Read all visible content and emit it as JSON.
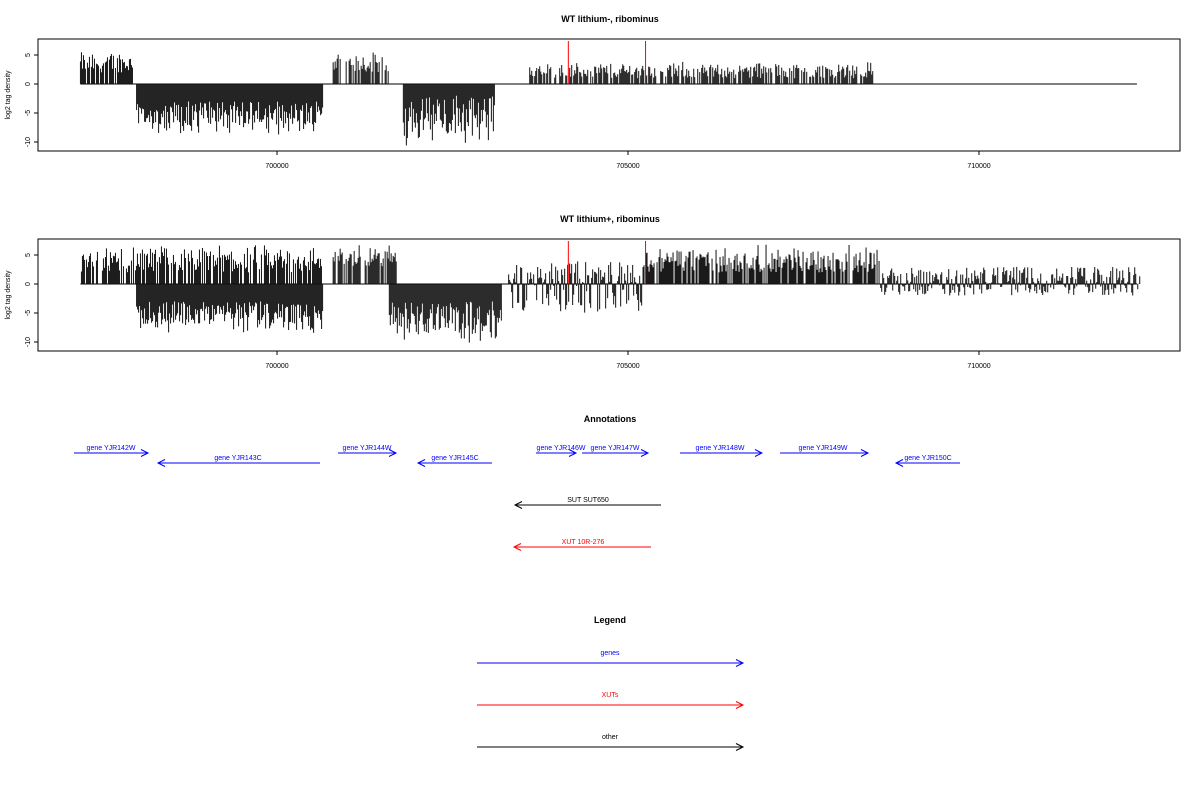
{
  "chart_data": [
    {
      "type": "bar",
      "title": "WT lithium-, ribominus",
      "xlabel": "",
      "ylabel": "log2 tag density",
      "xlim": [
        697150,
        712350
      ],
      "ylim": [
        -11.5,
        7.5
      ],
      "xticks": [
        700000,
        705000,
        710000
      ],
      "yticks": [
        5,
        0,
        -5,
        -10
      ],
      "grid": false,
      "series": [
        {
          "values": [
            {
              "x_start": 697200,
              "x_end": 697950,
              "min": 2,
              "max": 6
            },
            {
              "x_start": 698000,
              "x_end": 700650,
              "min": -9,
              "max": -3
            },
            {
              "x_start": 700800,
              "x_end": 701600,
              "min": 2,
              "max": 6
            },
            {
              "x_start": 701800,
              "x_end": 703100,
              "min": -11,
              "max": -2
            },
            {
              "x_start": 703600,
              "x_end": 708500,
              "min": 1,
              "max": 4
            }
          ]
        }
      ],
      "markers": [
        704150,
        705250
      ]
    },
    {
      "type": "bar",
      "title": "WT lithium+, ribominus",
      "xlabel": "",
      "ylabel": "log2 tag density",
      "xlim": [
        697150,
        712350
      ],
      "ylim": [
        -11.5,
        7.5
      ],
      "xticks": [
        700000,
        705000,
        710000
      ],
      "yticks": [
        5,
        0,
        -5,
        -10
      ],
      "grid": false,
      "series": [
        {
          "values": [
            {
              "x_start": 697200,
              "x_end": 700650,
              "min": 2,
              "max": 7
            },
            {
              "x_start": 698000,
              "x_end": 700650,
              "min": -9,
              "max": -3
            },
            {
              "x_start": 700800,
              "x_end": 701700,
              "min": 3,
              "max": 7
            },
            {
              "x_start": 701600,
              "x_end": 703200,
              "min": -11,
              "max": -3
            },
            {
              "x_start": 703300,
              "x_end": 705200,
              "min": -5,
              "max": 4
            },
            {
              "x_start": 705200,
              "x_end": 708600,
              "min": 2,
              "max": 7
            },
            {
              "x_start": 708600,
              "x_end": 712300,
              "min": -2,
              "max": 3
            }
          ]
        }
      ],
      "markers": [
        704150,
        705250
      ]
    },
    {
      "type": "annotation-track",
      "title": "Annotations",
      "features": [
        {
          "label": "gene YJR142W",
          "kind": "genes",
          "strand": "+"
        },
        {
          "label": "gene YJR143C",
          "kind": "genes",
          "strand": "-"
        },
        {
          "label": "gene YJR144W",
          "kind": "genes",
          "strand": "+"
        },
        {
          "label": "gene YJR145C",
          "kind": "genes",
          "strand": "-"
        },
        {
          "label": "gene YJR146W",
          "kind": "genes",
          "strand": "+"
        },
        {
          "label": "gene YJR147W",
          "kind": "genes",
          "strand": "+"
        },
        {
          "label": "gene YJR148W",
          "kind": "genes",
          "strand": "+"
        },
        {
          "label": "gene YJR149W",
          "kind": "genes",
          "strand": "+"
        },
        {
          "label": "gene YJR150C",
          "kind": "genes",
          "strand": "-"
        },
        {
          "label": "SUT SUT650",
          "kind": "other",
          "strand": "-"
        },
        {
          "label": "XUT 10R-276",
          "kind": "XUTs",
          "strand": "-"
        }
      ]
    },
    {
      "type": "legend",
      "title": "Legend",
      "entries": [
        {
          "label": "genes",
          "color": "#0000ff"
        },
        {
          "label": "XUTs",
          "color": "#ff0000"
        },
        {
          "label": "other",
          "color": "#000000"
        }
      ]
    }
  ]
}
